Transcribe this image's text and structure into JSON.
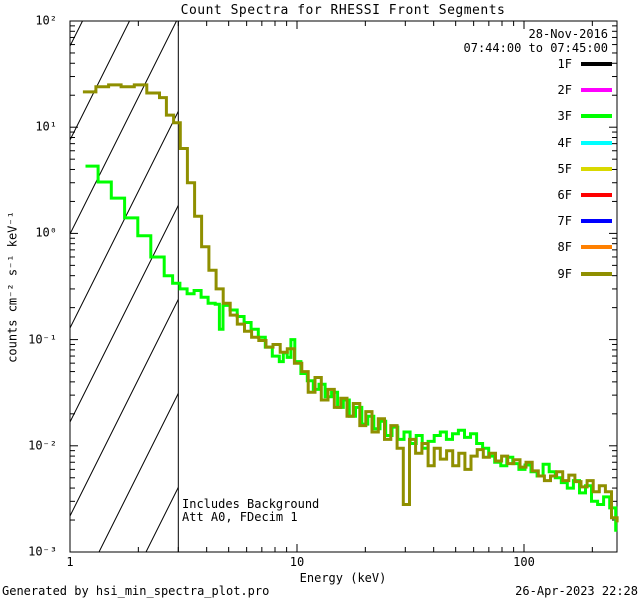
{
  "header": {
    "title": "Count Spectra for RHESSI Front Segments",
    "date": "28-Nov-2016",
    "time_range": "07:44:00 to 07:45:00"
  },
  "legend": {
    "entries": [
      {
        "label": "1F",
        "color": "#000000"
      },
      {
        "label": "2F",
        "color": "#FF00FF"
      },
      {
        "label": "3F",
        "color": "#00FF00"
      },
      {
        "label": "4F",
        "color": "#00FFFF"
      },
      {
        "label": "5F",
        "color": "#D9D900"
      },
      {
        "label": "6F",
        "color": "#FF0000"
      },
      {
        "label": "7F",
        "color": "#0000FF"
      },
      {
        "label": "8F",
        "color": "#FF8000"
      },
      {
        "label": "9F",
        "color": "#8F8F00"
      }
    ]
  },
  "annotations": {
    "line1": "Includes Background",
    "line2": "Att A0, FDecim 1"
  },
  "footer": {
    "left": "Generated by hsi_min_spectra_plot.pro",
    "right": "26-Apr-2023 22:28"
  },
  "chart_data": {
    "type": "line",
    "title": "Count Spectra for RHESSI Front Segments",
    "xlabel": "Energy (keV)",
    "ylabel": "counts cm⁻² s⁻¹ keV⁻¹",
    "x_scale": "log",
    "y_scale": "log",
    "xlim": [
      1,
      257
    ],
    "ylim": [
      0.001,
      100
    ],
    "x_tick_labels": [
      "1",
      "10",
      "100"
    ],
    "y_tick_labels": [
      "10²",
      "10¹",
      "10⁰",
      "10⁻¹",
      "10⁻²",
      "10⁻³"
    ],
    "grid": false,
    "legend_position": "right-top",
    "hatched_region": {
      "x_from": 1,
      "x_to": 3
    },
    "series": [
      {
        "name": "3F",
        "color": "#00FF00",
        "points": [
          [
            1.17,
            4.3
          ],
          [
            1.33,
            3.05
          ],
          [
            1.52,
            2.15
          ],
          [
            1.74,
            1.4
          ],
          [
            1.99,
            0.95
          ],
          [
            2.27,
            0.6
          ],
          [
            2.6,
            0.4
          ],
          [
            2.83,
            0.34
          ],
          [
            3.05,
            0.3
          ],
          [
            3.28,
            0.27
          ],
          [
            3.52,
            0.29
          ],
          [
            3.78,
            0.25
          ],
          [
            4.06,
            0.22
          ],
          [
            4.36,
            0.215
          ],
          [
            4.55,
            0.125
          ],
          [
            4.72,
            0.21
          ],
          [
            5.07,
            0.19
          ],
          [
            5.45,
            0.165
          ],
          [
            5.85,
            0.145
          ],
          [
            6.28,
            0.125
          ],
          [
            6.75,
            0.105
          ],
          [
            7.25,
            0.085
          ],
          [
            7.78,
            0.07
          ],
          [
            8.36,
            0.062
          ],
          [
            8.7,
            0.075
          ],
          [
            9.05,
            0.068
          ],
          [
            9.4,
            0.1
          ],
          [
            9.78,
            0.062
          ],
          [
            10.4,
            0.048
          ],
          [
            11.1,
            0.041
          ],
          [
            11.8,
            0.034
          ],
          [
            12.5,
            0.038
          ],
          [
            13.3,
            0.029
          ],
          [
            14.2,
            0.032
          ],
          [
            15.1,
            0.023
          ],
          [
            16.0,
            0.027
          ],
          [
            17.0,
            0.019
          ],
          [
            18.1,
            0.023
          ],
          [
            19.3,
            0.016
          ],
          [
            20.5,
            0.019
          ],
          [
            21.8,
            0.0145
          ],
          [
            23.2,
            0.017
          ],
          [
            24.6,
            0.0125
          ],
          [
            26.2,
            0.015
          ],
          [
            27.8,
            0.0115
          ],
          [
            29.6,
            0.0135
          ],
          [
            31.5,
            0.0105
          ],
          [
            33.5,
            0.0125
          ],
          [
            35.6,
            0.0095
          ],
          [
            37.8,
            0.011
          ],
          [
            40.2,
            0.0125
          ],
          [
            42.8,
            0.0135
          ],
          [
            45.5,
            0.0115
          ],
          [
            48.4,
            0.013
          ],
          [
            51.4,
            0.014
          ],
          [
            54.7,
            0.012
          ],
          [
            58.1,
            0.013
          ],
          [
            61.8,
            0.0105
          ],
          [
            65.7,
            0.0095
          ],
          [
            69.9,
            0.008
          ],
          [
            74.3,
            0.007
          ],
          [
            79.0,
            0.0065
          ],
          [
            84.0,
            0.0078
          ],
          [
            89.3,
            0.0068
          ],
          [
            95.0,
            0.006
          ],
          [
            101.0,
            0.0066
          ],
          [
            107.4,
            0.0057
          ],
          [
            114.2,
            0.0052
          ],
          [
            121.4,
            0.0067
          ],
          [
            129.1,
            0.0057
          ],
          [
            137.3,
            0.005
          ],
          [
            146.0,
            0.0045
          ],
          [
            155.2,
            0.004
          ],
          [
            165.0,
            0.0047
          ],
          [
            175.5,
            0.0036
          ],
          [
            186.6,
            0.0042
          ],
          [
            198.4,
            0.003
          ],
          [
            211.0,
            0.0028
          ],
          [
            224.3,
            0.0033
          ],
          [
            238.5,
            0.0026
          ],
          [
            253.6,
            0.0016
          ],
          [
            257.0,
            0.0016
          ]
        ]
      },
      {
        "name": "9F",
        "color": "#8F8F00",
        "points": [
          [
            1.14,
            21.5
          ],
          [
            1.3,
            24.0
          ],
          [
            1.48,
            25.0
          ],
          [
            1.68,
            24.0
          ],
          [
            1.92,
            25.0
          ],
          [
            2.18,
            21.0
          ],
          [
            2.48,
            19.0
          ],
          [
            2.66,
            13.0
          ],
          [
            2.86,
            11.0
          ],
          [
            3.06,
            6.3
          ],
          [
            3.29,
            3.0
          ],
          [
            3.54,
            1.45
          ],
          [
            3.8,
            0.75
          ],
          [
            4.09,
            0.45
          ],
          [
            4.4,
            0.3
          ],
          [
            4.73,
            0.22
          ],
          [
            5.08,
            0.17
          ],
          [
            5.46,
            0.14
          ],
          [
            5.87,
            0.12
          ],
          [
            6.31,
            0.105
          ],
          [
            6.79,
            0.098
          ],
          [
            7.3,
            0.085
          ],
          [
            7.84,
            0.09
          ],
          [
            8.43,
            0.076
          ],
          [
            9.06,
            0.082
          ],
          [
            9.74,
            0.06
          ],
          [
            10.5,
            0.05
          ],
          [
            11.2,
            0.032
          ],
          [
            12.0,
            0.044
          ],
          [
            12.8,
            0.027
          ],
          [
            13.7,
            0.034
          ],
          [
            14.6,
            0.023
          ],
          [
            15.6,
            0.028
          ],
          [
            16.6,
            0.019
          ],
          [
            17.7,
            0.025
          ],
          [
            18.9,
            0.0155
          ],
          [
            20.1,
            0.021
          ],
          [
            21.4,
            0.0135
          ],
          [
            22.8,
            0.018
          ],
          [
            24.3,
            0.0115
          ],
          [
            25.9,
            0.0155
          ],
          [
            27.6,
            0.0095
          ],
          [
            29.4,
            0.0028
          ],
          [
            31.3,
            0.0115
          ],
          [
            33.3,
            0.0085
          ],
          [
            35.5,
            0.0105
          ],
          [
            37.8,
            0.0065
          ],
          [
            40.2,
            0.0095
          ],
          [
            42.8,
            0.0075
          ],
          [
            45.6,
            0.009
          ],
          [
            48.5,
            0.0065
          ],
          [
            51.6,
            0.0085
          ],
          [
            54.9,
            0.006
          ],
          [
            58.4,
            0.008
          ],
          [
            62.2,
            0.0092
          ],
          [
            66.2,
            0.0078
          ],
          [
            70.4,
            0.0085
          ],
          [
            74.9,
            0.0072
          ],
          [
            79.7,
            0.008
          ],
          [
            84.8,
            0.0068
          ],
          [
            90.2,
            0.0074
          ],
          [
            96.0,
            0.0063
          ],
          [
            102.1,
            0.007
          ],
          [
            108.7,
            0.0058
          ],
          [
            115.6,
            0.0052
          ],
          [
            123.0,
            0.0047
          ],
          [
            130.9,
            0.0052
          ],
          [
            139.2,
            0.0057
          ],
          [
            148.1,
            0.0047
          ],
          [
            157.6,
            0.0053
          ],
          [
            167.6,
            0.0046
          ],
          [
            178.3,
            0.0041
          ],
          [
            189.7,
            0.0047
          ],
          [
            201.8,
            0.0037
          ],
          [
            214.7,
            0.0042
          ],
          [
            228.4,
            0.0037
          ],
          [
            243.0,
            0.0021
          ],
          [
            257.0,
            0.0019
          ]
        ]
      }
    ]
  }
}
